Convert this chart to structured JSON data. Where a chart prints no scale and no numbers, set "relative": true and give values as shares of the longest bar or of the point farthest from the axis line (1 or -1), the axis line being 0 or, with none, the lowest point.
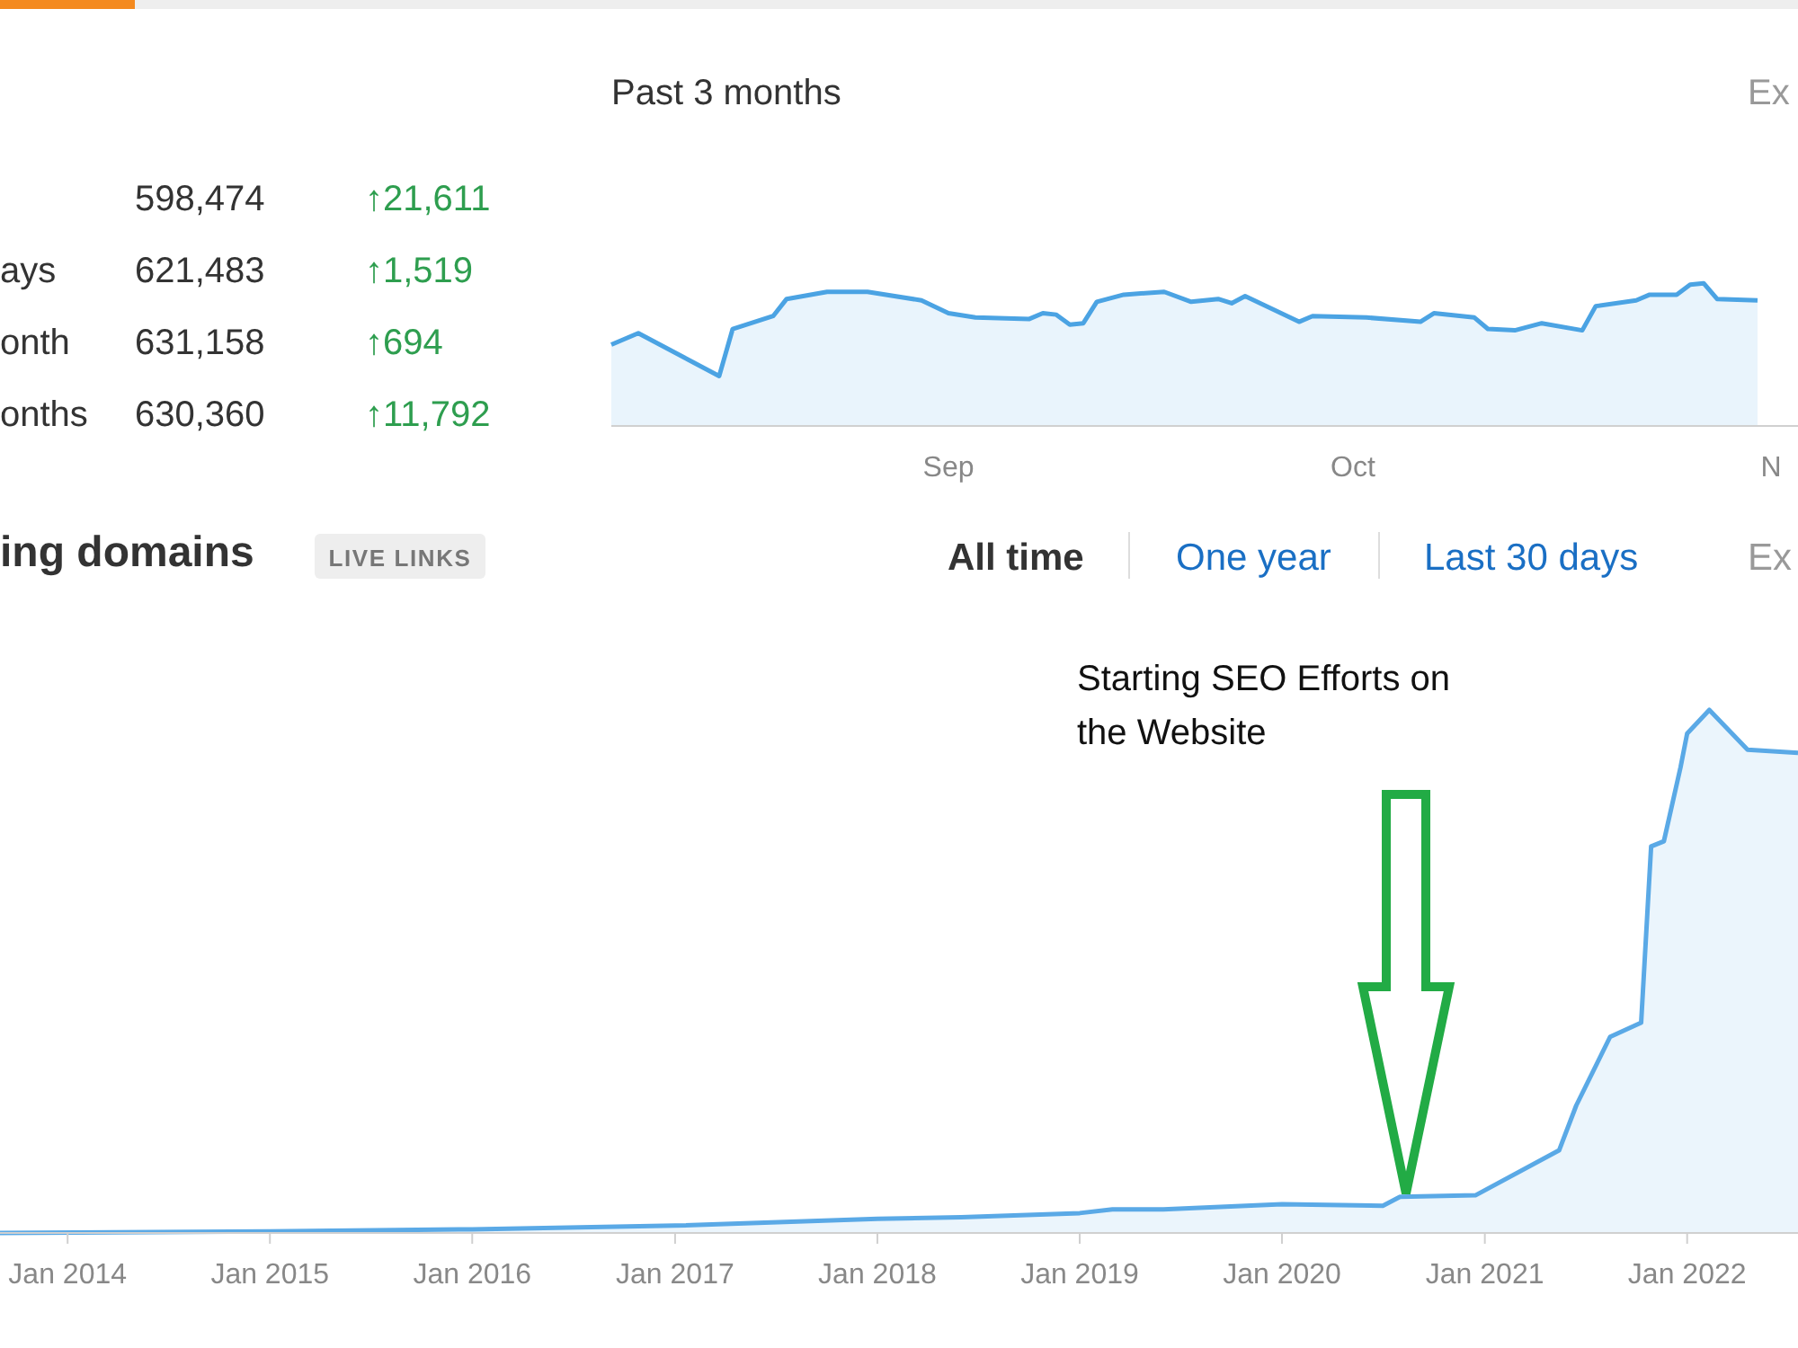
{
  "chart_data": [
    {
      "type": "other",
      "categories": [
        null,
        "ays",
        "onth",
        "onths"
      ],
      "annotations": [
        "598,474",
        "↑21,611",
        "621,483",
        "↑1,519",
        "631,158",
        "↑694",
        "630,360",
        "↑11,792"
      ]
    },
    {
      "type": "area",
      "title": "Past 3 months",
      "relative": true,
      "annotations": [
        "Ex"
      ],
      "xlim": [
        "--08-07",
        "--11-03"
      ],
      "xticks": [
        {
          "value": "--09-01",
          "label": "Sep"
        },
        {
          "value": "--10-01",
          "label": "Oct"
        },
        {
          "value": "--11-01",
          "label": "N"
        }
      ],
      "x": [
        "--08-07",
        "--08-09",
        "--08-15",
        "--08-16",
        "--08-19",
        "--08-20",
        "--08-23",
        "--08-26",
        "--08-30",
        "--09-01",
        "--09-03",
        "--09-07",
        "--09-08",
        "--09-09",
        "--09-10",
        "--09-11",
        "--09-12",
        "--09-14",
        "--09-17",
        "--09-19",
        "--09-21",
        "--09-22",
        "--09-23",
        "--09-27",
        "--09-28",
        "--10-02",
        "--10-06",
        "--10-07",
        "--10-10",
        "--10-11",
        "--10-13",
        "--10-15",
        "--10-18",
        "--10-19",
        "--10-22",
        "--10-23",
        "--10-25",
        "--10-26",
        "--10-27",
        "--10-28",
        "--10-31"
      ],
      "series": [
        {
          "color": "#4ba3e3",
          "values": [
            0.57,
            0.65,
            0.35,
            0.68,
            0.77,
            0.89,
            0.94,
            0.94,
            0.88,
            0.79,
            0.76,
            0.75,
            0.79,
            0.78,
            0.71,
            0.72,
            0.87,
            0.92,
            0.94,
            0.87,
            0.89,
            0.86,
            0.91,
            0.73,
            0.77,
            0.76,
            0.73,
            0.79,
            0.76,
            0.68,
            0.67,
            0.72,
            0.67,
            0.84,
            0.88,
            0.92,
            0.92,
            0.99,
            1,
            0.89,
            0.88
          ]
        }
      ]
    },
    {
      "type": "area",
      "title": "ing domains",
      "relative": true,
      "xlim": [
        "2013-09-01",
        "2022-07-20"
      ],
      "xticks": [
        {
          "value": "2014-01-01",
          "label": "Jan 2014"
        },
        {
          "value": "2015-01-01",
          "label": "Jan 2015"
        },
        {
          "value": "2016-01-01",
          "label": "Jan 2016"
        },
        {
          "value": "2017-01-01",
          "label": "Jan 2017"
        },
        {
          "value": "2018-01-01",
          "label": "Jan 2018"
        },
        {
          "value": "2019-01-01",
          "label": "Jan 2019"
        },
        {
          "value": "2020-01-01",
          "label": "Jan 2020"
        },
        {
          "value": "2021-01-01",
          "label": "Jan 2021"
        },
        {
          "value": "2022-01-01",
          "label": "Jan 2022"
        }
      ],
      "annotations": [
        "LIVE LINKS",
        "All time",
        "One year",
        "Last 30 days",
        "Ex",
        "Starting SEO Efforts on the Website"
      ],
      "x": [
        "2013-09-01",
        "2015-01-01",
        "2016-01-01",
        "2017-01-01",
        "2018-01-01",
        "2018-06-01",
        "2019-01-01",
        "2019-03-01",
        "2019-06-01",
        "2020-01-01",
        "2020-07-01",
        "2020-08-01",
        "2020-12-15",
        "2021-05-15",
        "2021-06-15",
        "2021-08-15",
        "2021-10-10",
        "2021-10-28",
        "2021-11-20",
        "2021-12-20",
        "2022-01-01",
        "2022-02-10",
        "2022-04-20",
        "2022-07-20"
      ],
      "series": [
        {
          "color": "#5aa9e6",
          "values": [
            0,
            0.003,
            0.007,
            0.014,
            0.027,
            0.03,
            0.038,
            0.045,
            0.045,
            0.055,
            0.052,
            0.069,
            0.072,
            0.158,
            0.244,
            0.375,
            0.402,
            0.739,
            0.749,
            0.89,
            0.955,
            1,
            0.924,
            0.918
          ]
        }
      ]
    }
  ]
}
